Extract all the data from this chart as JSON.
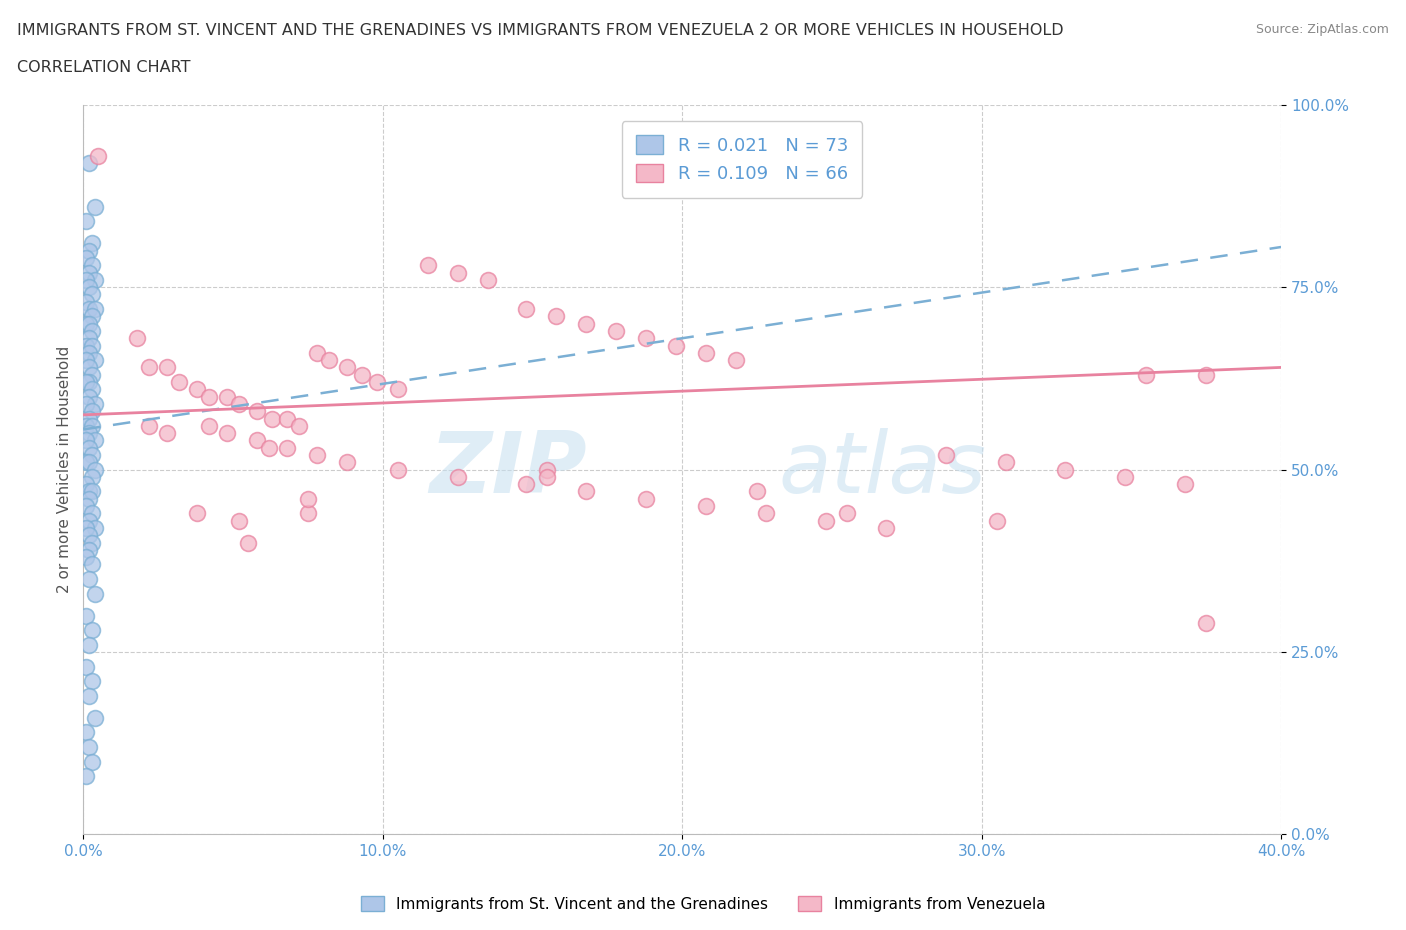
{
  "title_line1": "IMMIGRANTS FROM ST. VINCENT AND THE GRENADINES VS IMMIGRANTS FROM VENEZUELA 2 OR MORE VEHICLES IN HOUSEHOLD",
  "title_line2": "CORRELATION CHART",
  "source_text": "Source: ZipAtlas.com",
  "ylabel": "2 or more Vehicles in Household",
  "xlim": [
    0.0,
    0.4
  ],
  "ylim": [
    0.0,
    1.0
  ],
  "blue_R": 0.021,
  "blue_N": 73,
  "pink_R": 0.109,
  "pink_N": 66,
  "blue_color": "#aec6e8",
  "blue_edge": "#7bafd4",
  "pink_color": "#f4b8c8",
  "pink_edge": "#e8829f",
  "blue_trend_color": "#7bafd4",
  "pink_trend_color": "#e8829f",
  "tick_color": "#5b9bd5",
  "legend_label_blue": "Immigrants from St. Vincent and the Grenadines",
  "legend_label_pink": "Immigrants from Venezuela",
  "watermark_zip": "ZIP",
  "watermark_atlas": "atlas",
  "blue_trend_x": [
    0.0,
    0.4
  ],
  "blue_trend_y": [
    0.555,
    0.805
  ],
  "pink_trend_x": [
    0.0,
    0.4
  ],
  "pink_trend_y": [
    0.575,
    0.64
  ],
  "blue_x": [
    0.002,
    0.004,
    0.001,
    0.003,
    0.002,
    0.001,
    0.003,
    0.002,
    0.004,
    0.001,
    0.002,
    0.003,
    0.001,
    0.002,
    0.004,
    0.003,
    0.001,
    0.002,
    0.003,
    0.002,
    0.001,
    0.003,
    0.002,
    0.004,
    0.001,
    0.002,
    0.003,
    0.002,
    0.001,
    0.003,
    0.002,
    0.004,
    0.001,
    0.003,
    0.002,
    0.001,
    0.003,
    0.002,
    0.004,
    0.001,
    0.002,
    0.003,
    0.001,
    0.002,
    0.004,
    0.003,
    0.001,
    0.002,
    0.003,
    0.002,
    0.001,
    0.003,
    0.002,
    0.004,
    0.001,
    0.002,
    0.003,
    0.002,
    0.001,
    0.003,
    0.002,
    0.004,
    0.001,
    0.003,
    0.002,
    0.001,
    0.003,
    0.002,
    0.004,
    0.001,
    0.002,
    0.003,
    0.001
  ],
  "blue_y": [
    0.92,
    0.86,
    0.84,
    0.81,
    0.8,
    0.79,
    0.78,
    0.77,
    0.76,
    0.76,
    0.75,
    0.74,
    0.73,
    0.72,
    0.72,
    0.71,
    0.7,
    0.7,
    0.69,
    0.68,
    0.67,
    0.67,
    0.66,
    0.65,
    0.65,
    0.64,
    0.63,
    0.62,
    0.62,
    0.61,
    0.6,
    0.59,
    0.59,
    0.58,
    0.57,
    0.56,
    0.56,
    0.55,
    0.54,
    0.54,
    0.53,
    0.52,
    0.51,
    0.51,
    0.5,
    0.49,
    0.48,
    0.47,
    0.47,
    0.46,
    0.45,
    0.44,
    0.43,
    0.42,
    0.42,
    0.41,
    0.4,
    0.39,
    0.38,
    0.37,
    0.35,
    0.33,
    0.3,
    0.28,
    0.26,
    0.23,
    0.21,
    0.19,
    0.16,
    0.14,
    0.12,
    0.1,
    0.08
  ],
  "pink_x": [
    0.005,
    0.018,
    0.022,
    0.028,
    0.032,
    0.038,
    0.042,
    0.048,
    0.052,
    0.058,
    0.063,
    0.068,
    0.072,
    0.078,
    0.082,
    0.088,
    0.093,
    0.098,
    0.105,
    0.115,
    0.125,
    0.135,
    0.148,
    0.158,
    0.168,
    0.178,
    0.188,
    0.198,
    0.208,
    0.218,
    0.042,
    0.048,
    0.058,
    0.068,
    0.078,
    0.088,
    0.105,
    0.125,
    0.148,
    0.168,
    0.188,
    0.208,
    0.228,
    0.248,
    0.268,
    0.288,
    0.308,
    0.328,
    0.348,
    0.368,
    0.022,
    0.028,
    0.038,
    0.052,
    0.062,
    0.075,
    0.155,
    0.225,
    0.305,
    0.355,
    0.375,
    0.055,
    0.075,
    0.155,
    0.255,
    0.375
  ],
  "pink_y": [
    0.93,
    0.68,
    0.64,
    0.64,
    0.62,
    0.61,
    0.6,
    0.6,
    0.59,
    0.58,
    0.57,
    0.57,
    0.56,
    0.66,
    0.65,
    0.64,
    0.63,
    0.62,
    0.61,
    0.78,
    0.77,
    0.76,
    0.72,
    0.71,
    0.7,
    0.69,
    0.68,
    0.67,
    0.66,
    0.65,
    0.56,
    0.55,
    0.54,
    0.53,
    0.52,
    0.51,
    0.5,
    0.49,
    0.48,
    0.47,
    0.46,
    0.45,
    0.44,
    0.43,
    0.42,
    0.52,
    0.51,
    0.5,
    0.49,
    0.48,
    0.56,
    0.55,
    0.44,
    0.43,
    0.53,
    0.44,
    0.5,
    0.47,
    0.43,
    0.63,
    0.29,
    0.4,
    0.46,
    0.49,
    0.44,
    0.63
  ]
}
